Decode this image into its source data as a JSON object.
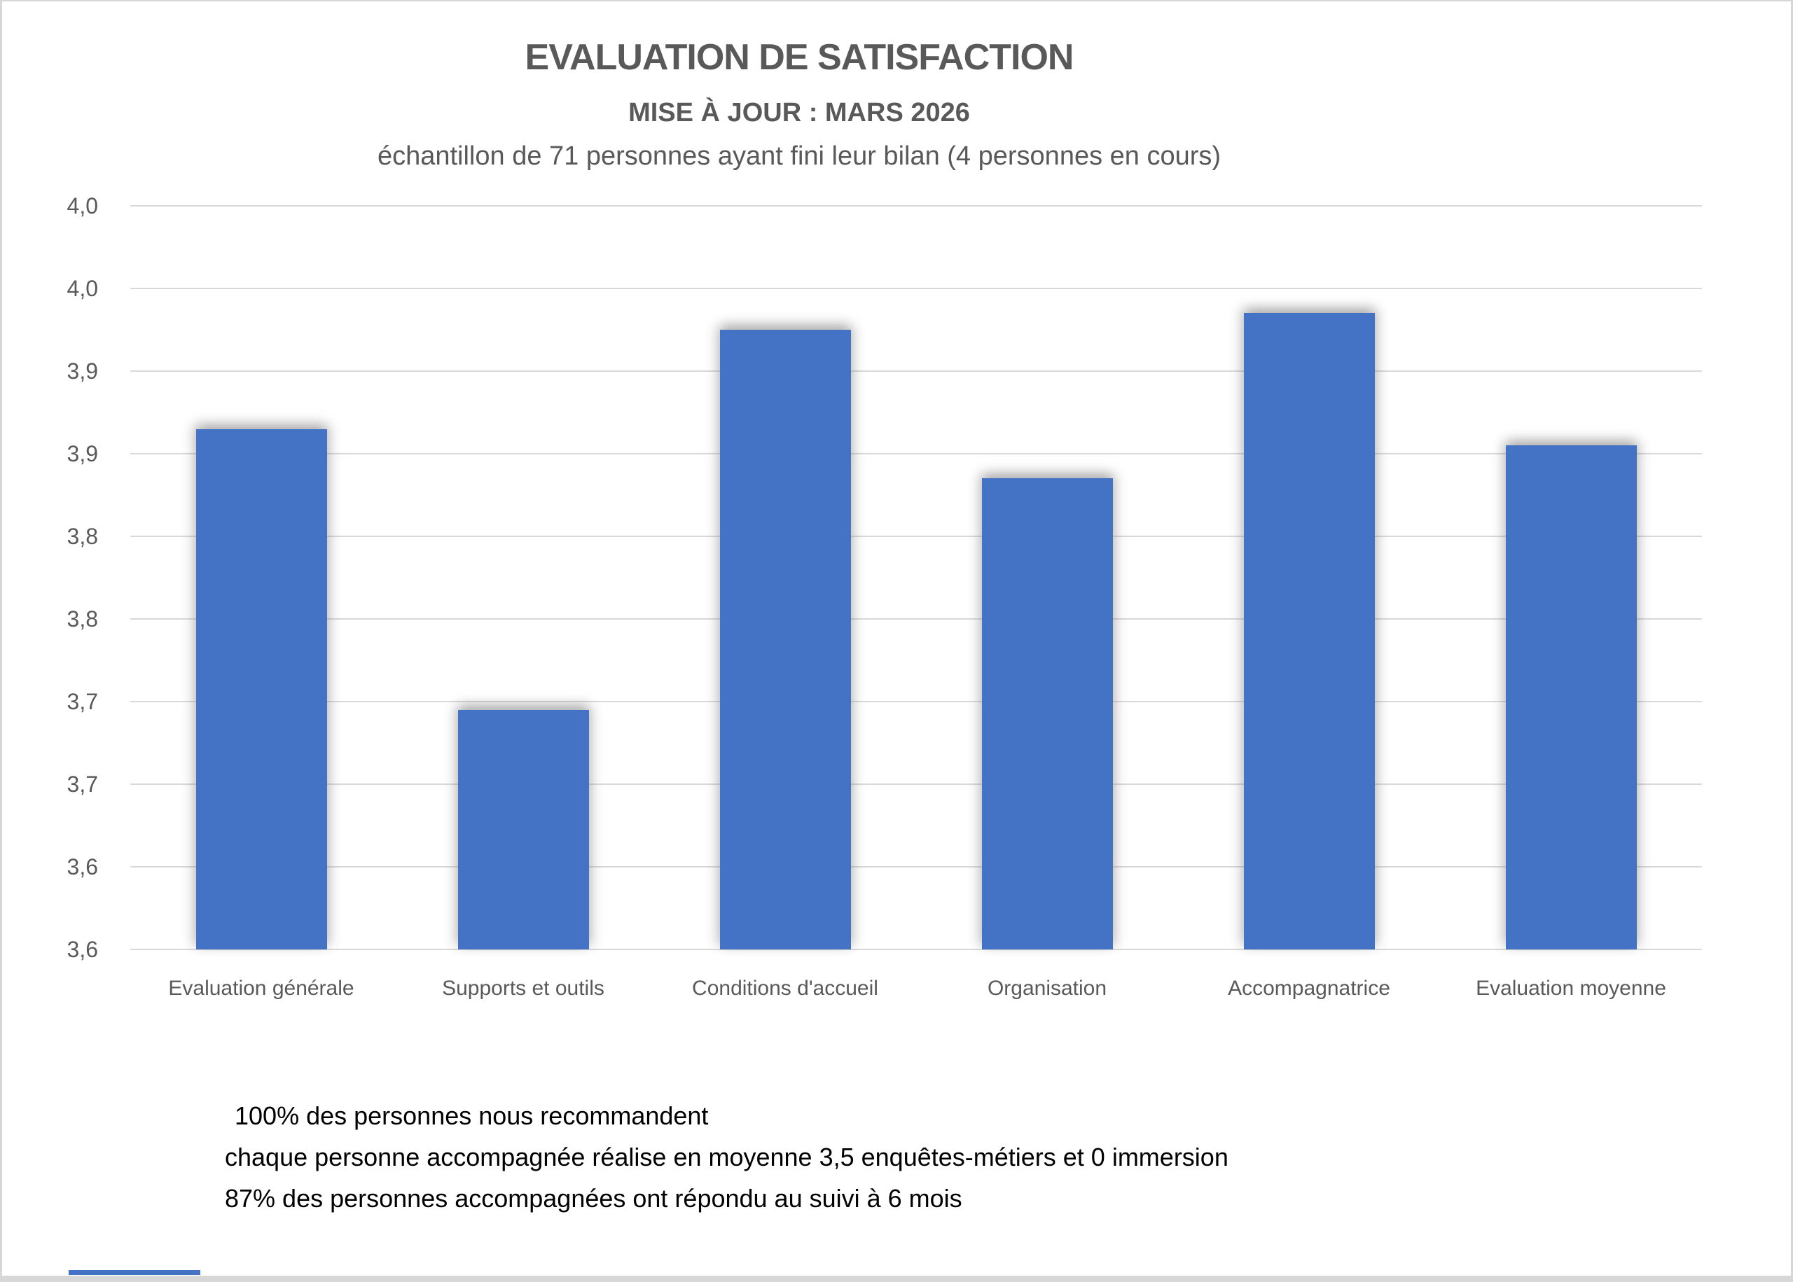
{
  "page": {
    "background": "#ffffff",
    "border_color": "#d7d7d7"
  },
  "header": {
    "title": "EVALUATION DE SATISFACTION",
    "subtitle": "MISE À JOUR : MARS 2026",
    "caption": "échantillon de 71 personnes ayant fini leur bilan (4 personnes en cours)"
  },
  "chart_data": {
    "type": "bar",
    "title": "EVALUATION DE SATISFACTION",
    "subtitle": "MISE À JOUR : MARS 2026",
    "caption": "échantillon de 71 personnes ayant fini leur bilan (4 personnes en cours)",
    "categories": [
      "Evaluation générale",
      "Supports et outils",
      "Conditions d'accueil",
      "Organisation",
      "Accompagnatrice",
      "Evaluation moyenne"
    ],
    "values": [
      3.89,
      3.72,
      3.95,
      3.86,
      3.96,
      3.88
    ],
    "xlabel": "",
    "ylabel": "",
    "y_axis": {
      "min": 3.575,
      "max": 4.025,
      "step": 0.05,
      "tick_labels_top_to_bottom": [
        "4,0",
        "4,0",
        "3,9",
        "3,9",
        "3,8",
        "3,8",
        "3,7",
        "3,7",
        "3,6",
        "3,6"
      ]
    },
    "grid": true,
    "legend": false,
    "bar_color": "#4472c4",
    "gridline_color": "#d9d9d9",
    "axis_label_color": "#595959"
  },
  "notes": {
    "lines": [
      "100% des personnes nous recommandent",
      "chaque personne accompagnée réalise en moyenne 3,5 enquêtes-métiers et 0 immersion",
      "87% des personnes accompagnées ont répondu au suivi à 6 mois"
    ]
  },
  "accent_bar": {
    "color": "#4472c4"
  }
}
